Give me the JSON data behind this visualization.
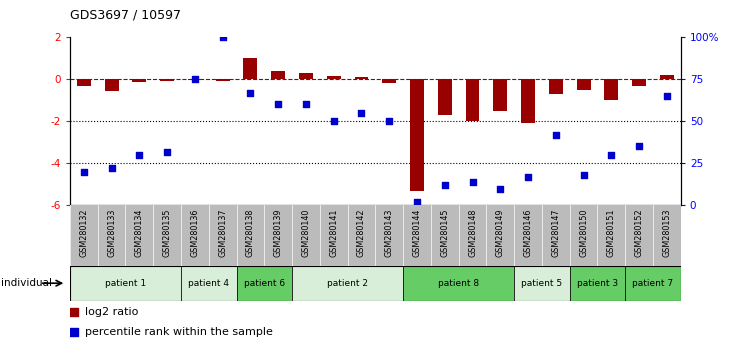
{
  "title": "GDS3697 / 10597",
  "samples": [
    "GSM280132",
    "GSM280133",
    "GSM280134",
    "GSM280135",
    "GSM280136",
    "GSM280137",
    "GSM280138",
    "GSM280139",
    "GSM280140",
    "GSM280141",
    "GSM280142",
    "GSM280143",
    "GSM280144",
    "GSM280145",
    "GSM280148",
    "GSM280149",
    "GSM280146",
    "GSM280147",
    "GSM280150",
    "GSM280151",
    "GSM280152",
    "GSM280153"
  ],
  "log2_ratio": [
    -0.3,
    -0.55,
    -0.15,
    -0.1,
    -0.05,
    -0.1,
    1.0,
    0.4,
    0.3,
    0.15,
    0.1,
    -0.2,
    -5.3,
    -1.7,
    -2.0,
    -1.5,
    -2.1,
    -0.7,
    -0.5,
    -1.0,
    -0.3,
    0.2
  ],
  "percentile": [
    20,
    22,
    30,
    32,
    75,
    100,
    67,
    60,
    60,
    50,
    55,
    50,
    2,
    12,
    14,
    10,
    17,
    42,
    18,
    30,
    35,
    65
  ],
  "patients": [
    {
      "label": "patient 1",
      "indices": [
        0,
        1,
        2,
        3
      ],
      "color": "#d8eed8"
    },
    {
      "label": "patient 4",
      "indices": [
        4,
        5
      ],
      "color": "#d8eed8"
    },
    {
      "label": "patient 6",
      "indices": [
        6,
        7
      ],
      "color": "#66cc66"
    },
    {
      "label": "patient 2",
      "indices": [
        8,
        9,
        10,
        11
      ],
      "color": "#d8eed8"
    },
    {
      "label": "patient 8",
      "indices": [
        12,
        13,
        14,
        15
      ],
      "color": "#66cc66"
    },
    {
      "label": "patient 5",
      "indices": [
        16,
        17
      ],
      "color": "#d8eed8"
    },
    {
      "label": "patient 3",
      "indices": [
        18,
        19
      ],
      "color": "#66cc66"
    },
    {
      "label": "patient 7",
      "indices": [
        20,
        21
      ],
      "color": "#66cc66"
    }
  ],
  "bar_color": "#990000",
  "dot_color": "#0000cc",
  "ylim_left": [
    -6,
    2
  ],
  "ylim_right": [
    0,
    100
  ],
  "yticks_left": [
    -6,
    -4,
    -2,
    0,
    2
  ],
  "yticks_right": [
    0,
    25,
    50,
    75,
    100
  ],
  "ytick_right_labels": [
    "0",
    "25",
    "50",
    "75",
    "100%"
  ],
  "dotted_lines": [
    -2,
    -4
  ],
  "bar_width": 0.5,
  "dot_size": 25,
  "sample_bg_color": "#bbbbbb",
  "plot_bg": "#ffffff"
}
